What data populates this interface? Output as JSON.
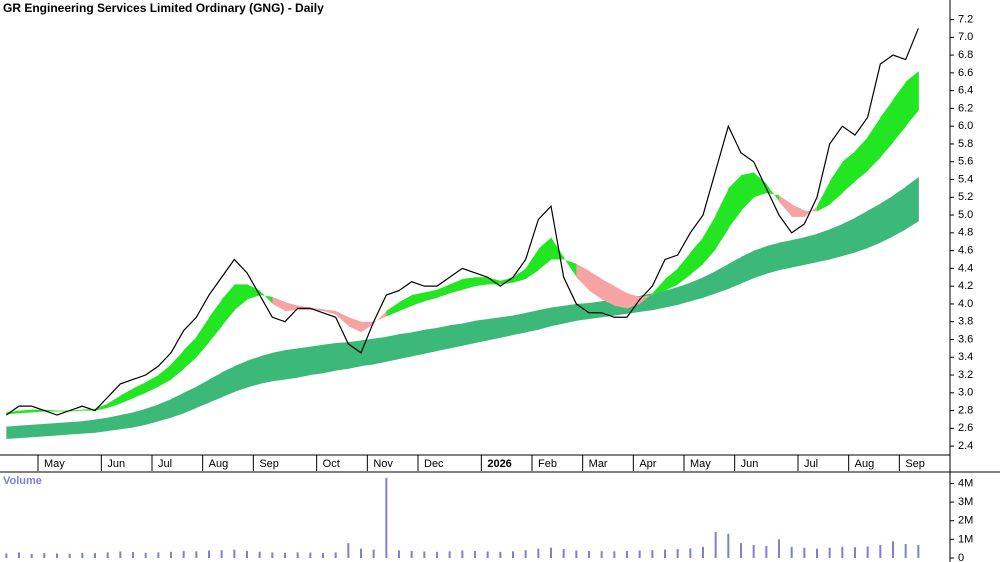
{
  "chart_data": [
    {
      "type": "line",
      "title": "GR Engineering Services Limited Ordinary (GNG) - Daily",
      "categories": [
        null,
        null,
        null,
        "May",
        null,
        null,
        null,
        null,
        "Jun",
        null,
        null,
        null,
        "Jul",
        null,
        null,
        null,
        "Aug",
        null,
        null,
        null,
        "Sep",
        null,
        null,
        null,
        null,
        "Oct",
        null,
        null,
        null,
        "Nov",
        null,
        null,
        null,
        "Dec",
        null,
        null,
        null,
        null,
        "2026",
        null,
        null,
        null,
        "Feb",
        null,
        null,
        null,
        "Mar",
        null,
        null,
        null,
        "Apr",
        null,
        null,
        null,
        "May",
        null,
        null,
        null,
        "Jun",
        null,
        null,
        null,
        null,
        "Jul",
        null,
        null,
        null,
        "Aug",
        null,
        null,
        null,
        "Sep",
        null,
        null,
        null
      ],
      "series": [
        {
          "color": "#000000",
          "values": [
            2.75,
            2.85,
            2.85,
            2.8,
            2.75,
            2.8,
            2.85,
            2.8,
            2.95,
            3.1,
            3.15,
            3.2,
            3.3,
            3.45,
            3.7,
            3.85,
            4.1,
            4.3,
            4.5,
            4.35,
            4.1,
            3.85,
            3.8,
            3.95,
            3.95,
            3.9,
            3.85,
            3.55,
            3.45,
            3.8,
            4.1,
            4.15,
            4.25,
            4.2,
            4.2,
            4.3,
            4.4,
            4.35,
            4.3,
            4.2,
            4.3,
            4.5,
            4.95,
            5.1,
            4.3,
            4.0,
            3.9,
            3.9,
            3.85,
            3.85,
            4.05,
            4.2,
            4.5,
            4.55,
            4.8,
            5.0,
            5.5,
            6.0,
            5.7,
            5.6,
            5.3,
            5.0,
            4.8,
            4.9,
            5.2,
            5.8,
            6.0,
            5.9,
            6.1,
            6.7,
            6.8,
            6.75,
            7.1,
            null,
            null
          ]
        }
      ],
      "ribbon": {
        "color_up": "#22e622",
        "color_down": "#f5a3a3",
        "fast": [
          2.78,
          2.8,
          2.81,
          2.81,
          2.8,
          2.8,
          2.81,
          2.82,
          2.88,
          2.97,
          3.05,
          3.12,
          3.2,
          3.32,
          3.48,
          3.63,
          3.85,
          4.05,
          4.22,
          4.22,
          4.15,
          4.0,
          3.92,
          3.93,
          3.93,
          3.92,
          3.88,
          3.75,
          3.68,
          3.78,
          3.92,
          4.02,
          4.1,
          4.13,
          4.16,
          4.22,
          4.28,
          4.3,
          4.3,
          4.26,
          4.3,
          4.4,
          4.62,
          4.75,
          4.52,
          4.3,
          4.15,
          4.05,
          3.98,
          3.95,
          4.0,
          4.12,
          4.28,
          4.4,
          4.58,
          4.75,
          5.0,
          5.3,
          5.45,
          5.48,
          5.35,
          5.15,
          4.98,
          4.98,
          5.1,
          5.38,
          5.6,
          5.72,
          5.88,
          6.1,
          6.3,
          6.5,
          6.62,
          null,
          null
        ],
        "slow": [
          2.76,
          2.77,
          2.78,
          2.79,
          2.79,
          2.79,
          2.8,
          2.8,
          2.83,
          2.88,
          2.94,
          3.0,
          3.07,
          3.15,
          3.27,
          3.4,
          3.57,
          3.75,
          3.93,
          4.05,
          4.1,
          4.08,
          4.02,
          3.98,
          3.96,
          3.94,
          3.92,
          3.85,
          3.8,
          3.8,
          3.86,
          3.92,
          3.98,
          4.03,
          4.07,
          4.12,
          4.16,
          4.2,
          4.22,
          4.22,
          4.24,
          4.28,
          4.38,
          4.5,
          4.5,
          4.45,
          4.37,
          4.28,
          4.2,
          4.12,
          4.08,
          4.1,
          4.15,
          4.22,
          4.33,
          4.45,
          4.62,
          4.85,
          5.05,
          5.2,
          5.25,
          5.22,
          5.12,
          5.05,
          5.04,
          5.12,
          5.25,
          5.38,
          5.5,
          5.65,
          5.82,
          6.0,
          6.18,
          null,
          null
        ]
      },
      "band": {
        "color": "#3cb878",
        "upper": [
          2.62,
          2.63,
          2.64,
          2.65,
          2.66,
          2.67,
          2.68,
          2.7,
          2.72,
          2.75,
          2.78,
          2.82,
          2.87,
          2.93,
          3.0,
          3.07,
          3.15,
          3.23,
          3.3,
          3.36,
          3.41,
          3.45,
          3.48,
          3.5,
          3.52,
          3.54,
          3.56,
          3.57,
          3.59,
          3.61,
          3.63,
          3.66,
          3.68,
          3.71,
          3.73,
          3.76,
          3.78,
          3.81,
          3.83,
          3.85,
          3.87,
          3.9,
          3.93,
          3.96,
          3.98,
          4.0,
          4.01,
          4.03,
          4.05,
          4.07,
          4.09,
          4.12,
          4.15,
          4.19,
          4.24,
          4.3,
          4.37,
          4.45,
          4.53,
          4.6,
          4.65,
          4.69,
          4.72,
          4.75,
          4.79,
          4.84,
          4.9,
          4.97,
          5.05,
          5.13,
          5.22,
          5.32,
          5.43,
          null,
          null
        ],
        "lower": [
          2.48,
          2.49,
          2.5,
          2.51,
          2.52,
          2.53,
          2.54,
          2.55,
          2.57,
          2.59,
          2.61,
          2.64,
          2.68,
          2.72,
          2.77,
          2.83,
          2.89,
          2.95,
          3.01,
          3.06,
          3.1,
          3.13,
          3.15,
          3.17,
          3.2,
          3.22,
          3.25,
          3.27,
          3.3,
          3.32,
          3.35,
          3.38,
          3.41,
          3.44,
          3.47,
          3.5,
          3.53,
          3.56,
          3.59,
          3.62,
          3.65,
          3.68,
          3.71,
          3.75,
          3.78,
          3.81,
          3.83,
          3.85,
          3.87,
          3.89,
          3.91,
          3.93,
          3.96,
          3.99,
          4.03,
          4.07,
          4.12,
          4.17,
          4.23,
          4.29,
          4.34,
          4.38,
          4.41,
          4.44,
          4.47,
          4.5,
          4.54,
          4.58,
          4.63,
          4.69,
          4.76,
          4.84,
          4.93,
          null,
          null
        ]
      },
      "ylim": [
        2.3,
        7.42
      ],
      "yticks": [
        2.4,
        2.6,
        2.8,
        {
          "value": 3,
          "label": "3.0"
        },
        3.2,
        3.4,
        3.6,
        3.8,
        {
          "value": 4,
          "label": "4.0"
        },
        4.2,
        4.4,
        4.6,
        4.8,
        {
          "value": 5,
          "label": "5.0"
        },
        5.2,
        5.4,
        5.6,
        5.8,
        {
          "value": 6,
          "label": "6.0"
        },
        6.2,
        6.4,
        6.6,
        6.8,
        {
          "value": 7,
          "label": "7.0"
        },
        7.2
      ]
    },
    {
      "type": "bar",
      "title": "Volume",
      "color": "#7f7fd5",
      "values": [
        250000,
        300000,
        220000,
        260000,
        240000,
        230000,
        280000,
        260000,
        300000,
        350000,
        320000,
        280000,
        300000,
        330000,
        380000,
        360000,
        400000,
        420000,
        450000,
        380000,
        340000,
        300000,
        280000,
        300000,
        290000,
        270000,
        300000,
        800000,
        500000,
        450000,
        4300000,
        400000,
        380000,
        350000,
        330000,
        360000,
        400000,
        380000,
        350000,
        330000,
        360000,
        420000,
        500000,
        550000,
        480000,
        400000,
        380000,
        370000,
        360000,
        380000,
        400000,
        420000,
        450000,
        480000,
        520000,
        600000,
        1400000,
        1300000,
        800000,
        700000,
        650000,
        1000000,
        600000,
        550000,
        500000,
        550000,
        600000,
        580000,
        620000,
        700000,
        900000,
        750000,
        700000,
        null,
        null
      ],
      "ylim": [
        0,
        4400000
      ],
      "yticks": [
        0,
        {
          "value": 1000000,
          "label": "1M"
        },
        {
          "value": 2000000,
          "label": "2M"
        },
        {
          "value": 3000000,
          "label": "3M"
        },
        {
          "value": 4000000,
          "label": "4M"
        }
      ]
    }
  ]
}
